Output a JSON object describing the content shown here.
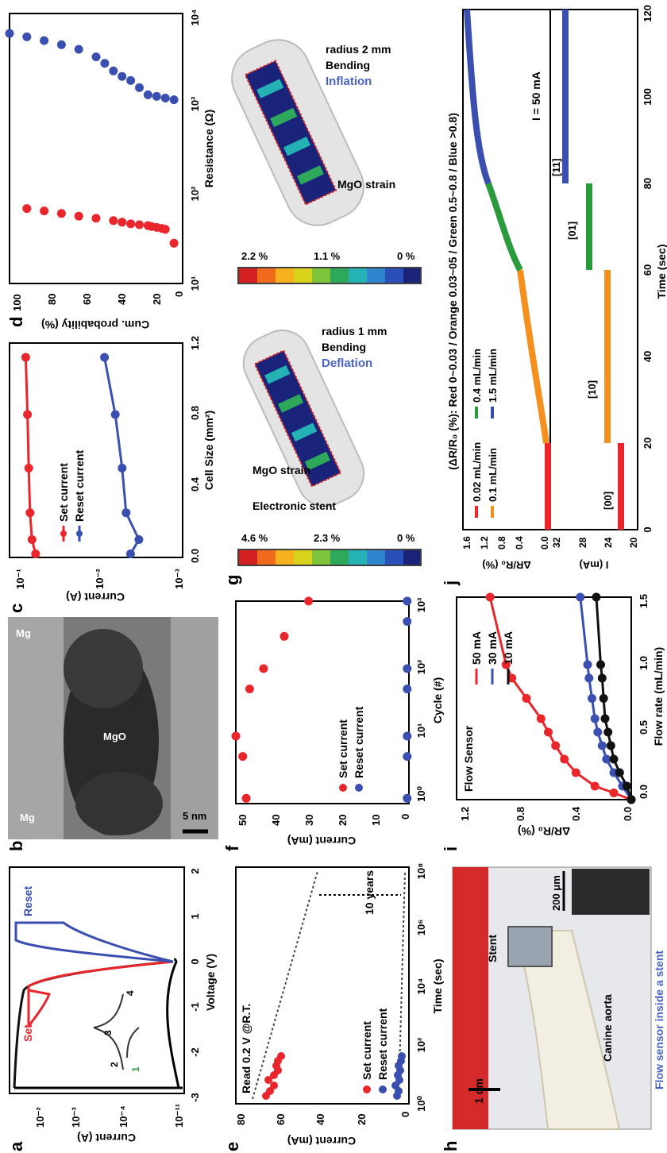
{
  "panel_letters": {
    "a": "a",
    "b": "b",
    "c": "c",
    "d": "d",
    "e": "e",
    "f": "f",
    "g": "g",
    "h": "h",
    "i": "i",
    "j": "j"
  },
  "panel_a": {
    "ylabel": "Current (A)",
    "xlabel": "Voltage (V)",
    "yticks": [
      "10⁻²",
      "10⁻³",
      "10⁻⁴",
      "10⁻¹¹"
    ],
    "xticks": [
      "-3",
      "-2",
      "-1",
      "0",
      "1",
      "2"
    ],
    "set_label": "Set",
    "reset_label": "Reset",
    "inset_labels": [
      "1",
      "2",
      "3",
      "4"
    ]
  },
  "panel_b": {
    "top_label": "Mg",
    "mid_label": "MgO",
    "bottom_label": "Mg",
    "scale_label": "5 nm"
  },
  "panel_c": {
    "ylabel": "Current (A)",
    "xlabel": "Cell Size (mm²)",
    "yticks": [
      "10⁻¹",
      "10⁻²",
      "10⁻³"
    ],
    "xticks": [
      "0.0",
      "0.4",
      "0.8",
      "1.2"
    ],
    "legend": [
      "Set current",
      "Reset current"
    ]
  },
  "panel_d": {
    "ylabel": "Cum. probability (%)",
    "xlabel": "Resistance (Ω)",
    "yticks": [
      "100",
      "80",
      "60",
      "40",
      "20",
      "0"
    ],
    "xticks": [
      "10¹",
      "10²",
      "10³",
      "10⁴"
    ]
  },
  "panel_e": {
    "ylabel": "Current (mA)",
    "xlabel": "Time (sec)",
    "yticks": [
      "80",
      "60",
      "40",
      "20",
      "0"
    ],
    "xticks": [
      "10⁰",
      "10²",
      "10⁴",
      "10⁶",
      "10⁸"
    ],
    "read_label": "Read 0.2 V @R.T.",
    "years_label": "10 years",
    "legend": [
      "Set current",
      "Reset current"
    ]
  },
  "panel_f": {
    "ylabel": "Current (mA)",
    "xlabel": "Cycle (#)",
    "yticks": [
      "50",
      "40",
      "30",
      "20",
      "10",
      "0"
    ],
    "xticks": [
      "10⁰",
      "10¹",
      "10²",
      "10³"
    ],
    "legend": [
      "Set current",
      "Reset current"
    ]
  },
  "panel_g": {
    "left_scale": [
      "4.6 %",
      "2.3 %",
      "0 %"
    ],
    "right_scale": [
      "2.2 %",
      "1.1 %",
      "0 %"
    ],
    "electronic_stent": "Electronic stent",
    "mgo_strain": "MgO strain",
    "deflation": "Deflation",
    "bend1": "Bending",
    "bend1b": "radius 1 mm",
    "inflation": "Inflation",
    "bend2": "Bending",
    "bend2b": "radius 2 mm"
  },
  "panel_h": {
    "scale1": "1 cm",
    "stent": "Stent",
    "aorta": "Canine aorta",
    "flow_sensor": "Flow sensor inside a stent",
    "scale2": "200 μm"
  },
  "panel_i": {
    "ylabel": "ΔR/R₀ (%)",
    "xlabel": "Flow rate (mL/min)",
    "title": "Flow Sensor",
    "yticks": [
      "1.2",
      "0.8",
      "0.4",
      "0.0"
    ],
    "xticks": [
      "0.0",
      "0.5",
      "1.0",
      "1.5"
    ],
    "legend": [
      "50 mA",
      "30 mA",
      "10 mA"
    ]
  },
  "panel_j": {
    "header": "(ΔR/R₀ (%): Red 0~0.03 / Orange 0.03~05 / Green 0.5~0.8 / Blue >0.8)",
    "legend": [
      "0.02 mL/min",
      "0.1 mL/min",
      "0.4 mL/min",
      "1.5 mL/min"
    ],
    "current_label": "I = 50 mA",
    "top_ylabel": "ΔR/R₀ (%)",
    "top_yticks": [
      "1.6",
      "1.2",
      "0.8",
      "0.4",
      "0.0"
    ],
    "bot_ylabel": "I (mA)",
    "bot_yticks": [
      "32",
      "28",
      "24",
      "20"
    ],
    "xlabel": "Time (sec)",
    "xticks": [
      "0",
      "20",
      "40",
      "60",
      "80",
      "100",
      "120"
    ],
    "codes": [
      "[00]",
      "[10]",
      "[01]",
      "[11]"
    ]
  },
  "colors": {
    "red": "#e8262c",
    "blue": "#3a4fb0",
    "black": "#111111",
    "orange": "#f5901e",
    "green": "#2a9a3c"
  },
  "chart_data": [
    {
      "type": "scatter",
      "panel": "d",
      "xlabel": "Resistance (Ω)",
      "ylabel": "Cum. probability (%)",
      "xscale": "log",
      "xlim": [
        10,
        10000
      ],
      "ylim": [
        0,
        100
      ],
      "series": [
        {
          "color": "red",
          "x": [
            28,
            40,
            41,
            42,
            43,
            44,
            45,
            46,
            48,
            50,
            53,
            56,
            60,
            64,
            68
          ],
          "y": [
            5,
            10,
            12,
            15,
            18,
            20,
            25,
            30,
            35,
            40,
            50,
            60,
            70,
            80,
            90
          ]
        },
        {
          "color": "blue",
          "x": [
            1100,
            1150,
            1200,
            1250,
            1500,
            1800,
            2000,
            2300,
            2800,
            3300,
            4000,
            4500,
            5000,
            5500,
            6000
          ],
          "y": [
            5,
            10,
            15,
            20,
            25,
            30,
            35,
            40,
            45,
            50,
            60,
            70,
            80,
            90,
            100
          ]
        }
      ]
    },
    {
      "type": "line",
      "panel": "c",
      "xlabel": "Cell Size (mm²)",
      "ylabel": "Current (A)",
      "yscale": "log",
      "xlim": [
        0,
        1.2
      ],
      "ylim": [
        0.001,
        0.1
      ],
      "series": [
        {
          "name": "Set current",
          "color": "red",
          "x": [
            0.02,
            0.1,
            0.25,
            0.5,
            0.8,
            1.12
          ],
          "y": [
            0.05,
            0.055,
            0.058,
            0.06,
            0.062,
            0.065
          ]
        },
        {
          "name": "Reset current",
          "color": "blue",
          "x": [
            0.02,
            0.1,
            0.25,
            0.5,
            0.8,
            1.12
          ],
          "y": [
            0.004,
            0.0032,
            0.0045,
            0.005,
            0.006,
            0.008
          ]
        }
      ]
    },
    {
      "type": "scatter",
      "panel": "f",
      "xlabel": "Cycle (#)",
      "ylabel": "Current (mA)",
      "xscale": "log",
      "xlim": [
        1,
        1000
      ],
      "ylim": [
        0,
        50
      ],
      "series": [
        {
          "name": "Set current",
          "color": "red",
          "x": [
            1.2,
            5,
            10,
            50,
            100,
            300,
            1000
          ],
          "y": [
            47,
            48,
            50,
            46,
            42,
            36,
            29
          ]
        },
        {
          "name": "Reset current",
          "color": "blue",
          "x": [
            1.2,
            5,
            10,
            50,
            100,
            500,
            1000
          ],
          "y": [
            0.5,
            0.5,
            0.5,
            0.5,
            0.5,
            0.5,
            0.5
          ]
        }
      ]
    },
    {
      "type": "line",
      "panel": "i",
      "xlabel": "Flow rate (mL/min)",
      "ylabel": "ΔR/R₀ (%)",
      "title": "Flow Sensor",
      "xlim": [
        0,
        1.5
      ],
      "ylim": [
        0,
        1.2
      ],
      "series": [
        {
          "name": "50 mA",
          "color": "red",
          "x": [
            0,
            0.05,
            0.1,
            0.2,
            0.3,
            0.4,
            0.5,
            0.6,
            0.75,
            0.9,
            1.0,
            1.5
          ],
          "y": [
            0,
            0.12,
            0.25,
            0.38,
            0.46,
            0.52,
            0.57,
            0.62,
            0.72,
            0.82,
            0.86,
            0.97
          ]
        },
        {
          "name": "30 mA",
          "color": "blue",
          "x": [
            0,
            0.1,
            0.2,
            0.3,
            0.4,
            0.5,
            0.6,
            0.75,
            0.9,
            1.0,
            1.5
          ],
          "y": [
            0,
            0.06,
            0.12,
            0.17,
            0.2,
            0.23,
            0.25,
            0.27,
            0.29,
            0.3,
            0.35
          ]
        },
        {
          "name": "10 mA",
          "color": "black",
          "x": [
            0,
            0.1,
            0.2,
            0.3,
            0.4,
            0.5,
            0.6,
            0.75,
            0.9,
            1.0,
            1.5
          ],
          "y": [
            0,
            0.03,
            0.08,
            0.12,
            0.14,
            0.16,
            0.18,
            0.19,
            0.2,
            0.21,
            0.24
          ]
        }
      ]
    }
  ]
}
